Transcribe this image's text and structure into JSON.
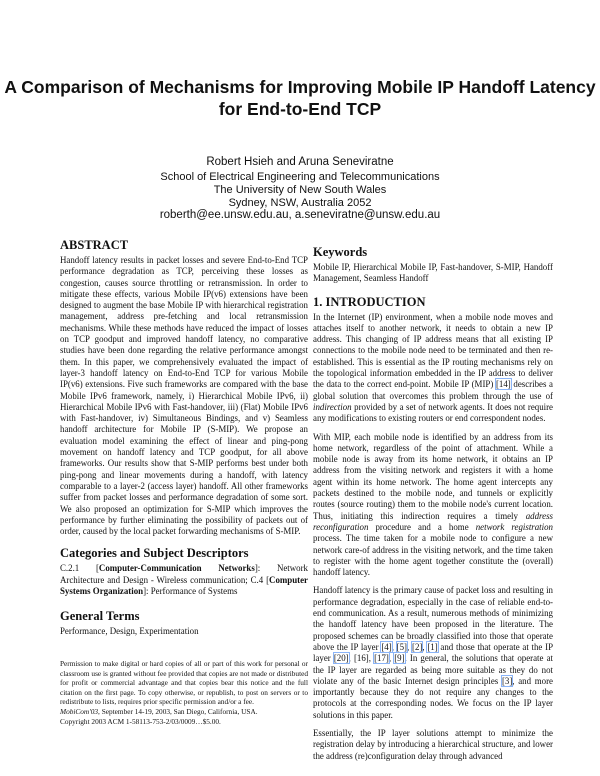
{
  "title": "A Comparison of Mechanisms for Improving Mobile IP Handoff Latency for End-to-End TCP",
  "authors": {
    "names": "Robert Hsieh and Aruna Seneviratne",
    "lines": [
      "School of Electrical Engineering and Telecommunications",
      "The University of New South Wales",
      "Sydney, NSW, Australia 2052"
    ],
    "email": "roberth@ee.unsw.edu.au, a.seneviratne@unsw.edu.au"
  },
  "abstract": {
    "heading": "ABSTRACT",
    "text": "Handoff latency results in packet losses and severe End-to-End TCP performance degradation as TCP, perceiving these losses as congestion, causes source throttling or retransmission. In order to mitigate these effects, various Mobile IP(v6) extensions have been designed to augment the base Mobile IP with hierarchical registration management, address pre-fetching and local retransmission mechanisms. While these methods have reduced the impact of losses on TCP goodput and improved handoff latency, no comparative studies have been done regarding the relative performance amongst them. In this paper, we comprehensively evaluated the impact of layer-3 handoff latency on End-to-End TCP for various Mobile IP(v6) extensions. Five such frameworks are compared with the base Mobile IPv6 framework, namely, i) Hierarchical Mobile IPv6, ii) Hierarchical Mobile IPv6 with Fast-handover, iii) (Flat) Mobile IPv6 with Fast-handover, iv) Simultaneous Bindings, and v) Seamless handoff architecture for Mobile IP (S-MIP). We propose an evaluation model examining the effect of linear and ping-pong movement on handoff latency and TCP goodput, for all above frameworks. Our results show that S-MIP performs best under both ping-pong and linear movements during a handoff, with latency comparable to a layer-2 (access layer) handoff. All other frameworks suffer from packet losses and performance degradation of some sort. We also proposed an optimization for S-MIP which improves the performance by further eliminating the possibility of packets out of order, caused by the local packet forwarding mechanisms of S-MIP."
  },
  "categories": {
    "heading": "Categories and Subject Descriptors",
    "segments": [
      {
        "t": "C.2.1 [",
        "s": ""
      },
      {
        "t": "Computer-Communication Networks",
        "s": "b"
      },
      {
        "t": "]: Network Architecture and Design - Wireless communication; C.4 [",
        "s": ""
      },
      {
        "t": "Computer Systems Organization",
        "s": "b"
      },
      {
        "t": "]: Performance of Systems",
        "s": ""
      }
    ]
  },
  "general_terms": {
    "heading": "General Terms",
    "text": "Performance, Design, Experimentation"
  },
  "permission": {
    "text": "Permission to make digital or hard copies of all or part of this work for personal or classroom use is granted without fee provided that copies are not made or distributed for profit or commercial advantage and that copies bear this notice and the full citation on the first page. To copy otherwise, or republish, to post on servers or to redistribute to lists, requires prior specific permission and/or a fee.",
    "venue_segments": [
      {
        "t": "MobiCom'03",
        "s": "i"
      },
      {
        "t": ", September 14-19, 2003, San Diego, California, USA.",
        "s": ""
      }
    ],
    "copyright": "Copyright 2003 ACM 1-58113-753-2/03/0009…$5.00."
  },
  "keywords": {
    "heading": "Keywords",
    "text": "Mobile IP, Hierarchical Mobile IP, Fast-handover, S-MIP, Handoff Management, Seamless Handoff"
  },
  "introduction": {
    "heading": "1. INTRODUCTION",
    "paragraphs": [
      [
        {
          "t": "In the Internet (IP) environment, when a mobile node moves and attaches itself to another network, it needs to obtain a new IP address. This changing of IP address means that all existing IP connections to the mobile node need to be terminated and then re-established. This is essential as the IP routing mechanisms rely on the topological information embedded in the IP address to deliver the data to the correct end-point. Mobile IP (MIP) ",
          "s": ""
        },
        {
          "t": "[14]",
          "s": "c"
        },
        {
          "t": " describes a global solution that overcomes this problem through the use of ",
          "s": ""
        },
        {
          "t": "indirection",
          "s": "i"
        },
        {
          "t": " provided by a set of network agents. It does not require any modifications to existing routers or end correspondent nodes.",
          "s": ""
        }
      ],
      [
        {
          "t": "With MIP, each mobile node is identified by an address from its home network, regardless of the point of attachment. While a mobile node is away from its home network, it obtains an IP address from the visiting network and registers it with a home agent within its home network. The home agent intercepts any packets destined to the mobile node, and tunnels or explicitly routes (source routing) them to the mobile node's current location. Thus, initiating this indirection requires a timely ",
          "s": ""
        },
        {
          "t": "address reconfiguration",
          "s": "i"
        },
        {
          "t": " procedure and a home ",
          "s": ""
        },
        {
          "t": "network registration",
          "s": "i"
        },
        {
          "t": " process. The time taken for a mobile node to configure a new network care-of address in the visiting network, and the time taken to register with the home agent together constitute the (overall) handoff latency.",
          "s": ""
        }
      ],
      [
        {
          "t": "Handoff latency is the primary cause of packet loss and resulting in performance degradation, especially in the case of reliable end-to-end communication. As a result, numerous methods of minimizing the handoff latency have been proposed in the literature. The proposed schemes can be broadly classified into those that operate above the IP layer ",
          "s": ""
        },
        {
          "t": "[4]",
          "s": "c"
        },
        {
          "t": ", ",
          "s": ""
        },
        {
          "t": "[5]",
          "s": "c"
        },
        {
          "t": ", ",
          "s": ""
        },
        {
          "t": "[2]",
          "s": "c"
        },
        {
          "t": ", ",
          "s": ""
        },
        {
          "t": "[1]",
          "s": "c"
        },
        {
          "t": " and those that operate at the IP layer ",
          "s": ""
        },
        {
          "t": "[20]",
          "s": "c"
        },
        {
          "t": ", [16], ",
          "s": ""
        },
        {
          "t": "[17]",
          "s": "c"
        },
        {
          "t": ", ",
          "s": ""
        },
        {
          "t": "[9]",
          "s": "c"
        },
        {
          "t": ". In general, the solutions that operate at the IP layer are regarded as being more suitable as they do not violate any of the basic Internet design principles ",
          "s": ""
        },
        {
          "t": "[3]",
          "s": "c"
        },
        {
          "t": ", and more importantly because they do not require any changes to the protocols at the corresponding nodes. We focus on the IP layer solutions in this paper.",
          "s": ""
        }
      ],
      [
        {
          "t": "Essentially, the IP layer solutions attempt to minimize the registration delay by introducing a hierarchical structure, and lower the address (re)configuration delay through advanced",
          "s": ""
        }
      ]
    ]
  }
}
